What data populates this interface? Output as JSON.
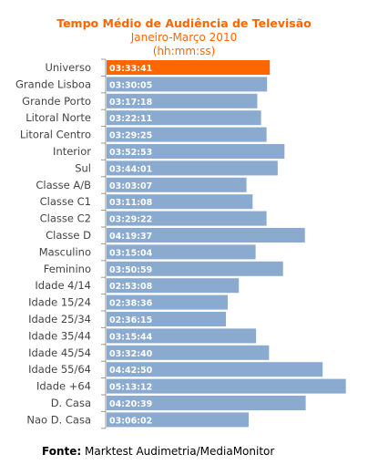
{
  "title": "Tempo Médio de Audiência  de Televisão",
  "subtitle_line1": "Janeiro-Março 2010",
  "subtitle_line2": "(hh:mm:ss)",
  "source_label": "Fonte:",
  "source_value": "Marktest Audimetria/MediaMonitor",
  "colors": {
    "title": "#ff6600",
    "highlight_bar": "#ff6600",
    "bar": "#8aaacf",
    "label_text": "#444444",
    "value_text": "#ffffff",
    "axis_line": "#9a9a9a"
  },
  "chart_data": {
    "type": "bar",
    "orientation": "horizontal",
    "title": "Tempo Médio de Audiência  de Televisão",
    "subtitle": "Janeiro-Março 2010 (hh:mm:ss)",
    "unit": "hh:mm:ss",
    "xlim_seconds": [
      0,
      18600
    ],
    "highlight_category": "Universo",
    "categories": [
      "Universo",
      "Grande Lisboa",
      "Grande Porto",
      "Litoral Norte",
      "Litoral Centro",
      "Interior",
      "Sul",
      "Classe A/B",
      "Classe C1",
      "Classe C2",
      "Classe D",
      "Masculino",
      "Feminino",
      "Idade 4/14",
      "Idade 15/24",
      "Idade 25/34",
      "Idade 35/44",
      "Idade 45/54",
      "Idade 55/64",
      "Idade +64",
      "D. Casa",
      "Nao D. Casa"
    ],
    "labels": [
      "03:33:41",
      "03:30:05",
      "03:17:18",
      "03:22:11",
      "03:29:25",
      "03:52:53",
      "03:44:01",
      "03:03:07",
      "03:11:08",
      "03:29:22",
      "04:19:37",
      "03:15:04",
      "03:50:59",
      "02:53:08",
      "02:38:36",
      "02:36:15",
      "03:15:44",
      "03:32:40",
      "04:42:50",
      "05:13:12",
      "04:20:39",
      "03:06:02"
    ],
    "values_seconds": [
      12821,
      12605,
      11838,
      12131,
      12565,
      13973,
      13441,
      10987,
      11468,
      12562,
      15577,
      11704,
      13859,
      10388,
      9516,
      9375,
      11744,
      12760,
      16970,
      18792,
      15639,
      11162
    ]
  }
}
